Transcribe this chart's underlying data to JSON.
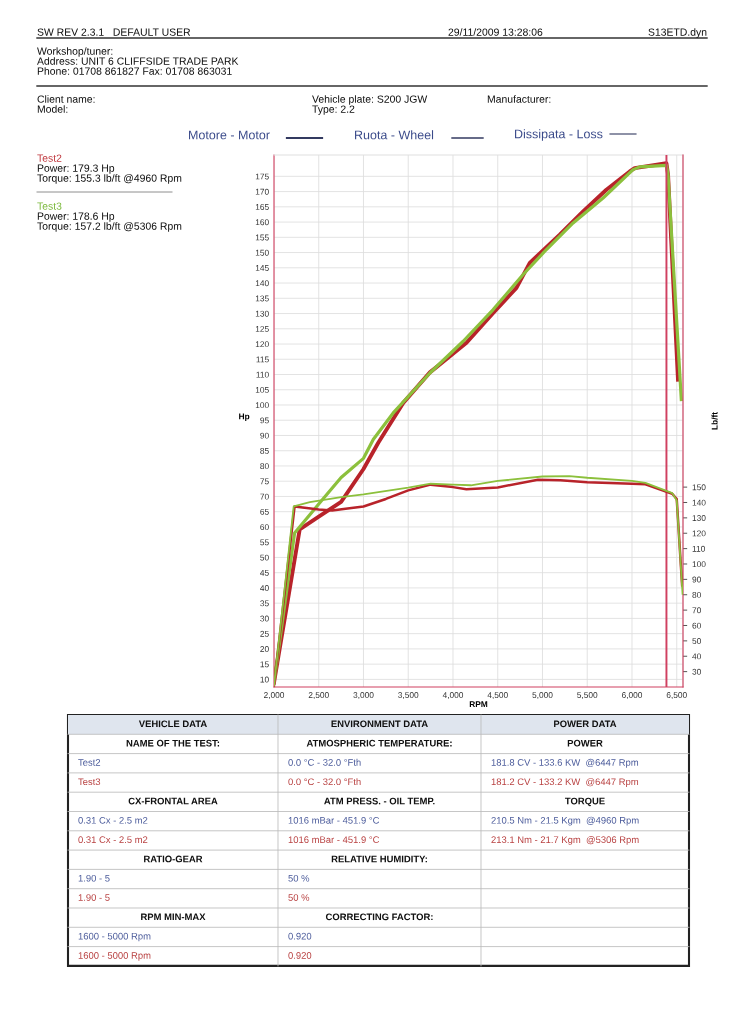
{
  "chart_data": {
    "type": "line",
    "xlabel": "RPM",
    "ylabel": "Hp",
    "y2label": "Lb/ft",
    "xlim": [
      2000,
      6570
    ],
    "ylim": [
      7.5,
      182
    ],
    "y2lim": [
      20,
      366
    ],
    "xticks": [
      {
        "value": 2000,
        "label": "2,000"
      },
      {
        "value": 2500,
        "label": "2,500"
      },
      {
        "value": 3000,
        "label": "3,000"
      },
      {
        "value": 3500,
        "label": "3,500"
      },
      {
        "value": 4000,
        "label": "4,000"
      },
      {
        "value": 4500,
        "label": "4,500"
      },
      {
        "value": 5000,
        "label": "5,000"
      },
      {
        "value": 5500,
        "label": "5,500"
      },
      {
        "value": 6000,
        "label": "6,000"
      },
      {
        "value": 6500,
        "label": "6,500"
      }
    ],
    "yticks": [
      10,
      15,
      20,
      25,
      30,
      35,
      40,
      45,
      50,
      55,
      60,
      65,
      70,
      75,
      80,
      85,
      90,
      95,
      100,
      105,
      110,
      115,
      120,
      125,
      130,
      135,
      140,
      145,
      150,
      155,
      160,
      165,
      170,
      175
    ],
    "y2ticks": [
      30,
      40,
      50,
      60,
      70,
      80,
      90,
      100,
      110,
      120,
      130,
      140,
      150
    ],
    "grid": true,
    "marker": "none",
    "line_style": "solid",
    "series": [
      {
        "color": "#b8232a",
        "x": [
          2000,
          2287,
          2500,
          2750,
          3000,
          3165,
          3444,
          3742,
          3928,
          4151,
          4449,
          4709,
          4858,
          5193,
          5454,
          5714,
          5975,
          6030,
          6385,
          6403,
          6514
        ],
        "values": [
          9,
          59.2,
          63.4,
          68.2,
          79.0,
          87.6,
          100.7,
          110.7,
          115.1,
          120.4,
          130.2,
          138.4,
          146.6,
          155.9,
          163.5,
          170.6,
          176.6,
          177.7,
          179.3,
          175.5,
          108.3
        ]
      },
      {
        "color": "#8cc03c",
        "x": [
          2000,
          2230,
          2500,
          2750,
          3000,
          3109,
          3332,
          3742,
          4114,
          4449,
          4784,
          5044,
          5342,
          5677,
          6012,
          6087,
          6385,
          6403,
          6551
        ],
        "values": [
          9,
          58,
          67.5,
          76.2,
          82.5,
          88.7,
          97.4,
          110.5,
          120.9,
          131.3,
          142.8,
          151.0,
          159.7,
          167.9,
          177.2,
          178.1,
          178.6,
          175.5,
          101.8
        ]
      },
      {
        "color": "#b8232a",
        "axis": "y2",
        "x": [
          2000,
          2230,
          2500,
          2650,
          2800,
          3000,
          3250,
          3500,
          3750,
          4000,
          4150,
          4500,
          4950,
          5200,
          5500,
          6000,
          6150,
          6450,
          6500,
          6560
        ],
        "values": [
          21,
          137.4,
          135.4,
          134.8,
          136.0,
          137.4,
          142.3,
          147.9,
          151.6,
          150.0,
          148.6,
          149.8,
          154.8,
          154.4,
          153.2,
          152.2,
          151.8,
          145.7,
          142.3,
          86.1
        ]
      },
      {
        "color": "#8cc03c",
        "axis": "y2",
        "x": [
          2000,
          2220,
          2400,
          2750,
          3000,
          3500,
          3750,
          4000,
          4200,
          4500,
          5000,
          5300,
          5500,
          6000,
          6150,
          6450,
          6500,
          6565
        ],
        "values": [
          21,
          137.4,
          140.2,
          143.5,
          145.3,
          149.6,
          152.2,
          151.6,
          151.2,
          154.0,
          156.9,
          157.2,
          156.1,
          154.0,
          152.8,
          146.1,
          141.3,
          80.6
        ]
      }
    ],
    "ref_lines": [
      {
        "axis": "x",
        "value": 6385,
        "color": "#d04060"
      }
    ],
    "annotations": [
      "SW REV 2.3.1   DEFAULT USER",
      "29/11/2009 13:28:06",
      "S13ETD.dyn",
      "Workshop/tuner:",
      "Address: UNIT 6 CLIFFSIDE TRADE PARK",
      "Phone: 01708 861827 Fax: 01708 863031",
      "Client name:",
      "Model:",
      "Vehicle plate: S200 JGW",
      "Type: 2.2",
      "Manufacturer:",
      "Motore - Motor",
      "Ruota - Wheel",
      "Dissipata - Loss",
      "Test2",
      "Power: 179.3 Hp",
      "Torque: 155.3 lb/ft @4960 Rpm",
      "Test3",
      "Power: 178.6 Hp",
      "Torque: 157.2 lb/ft @5306 Rpm",
      "VEHICLE DATA",
      "ENVIRONMENT DATA",
      "POWER DATA",
      "NAME OF THE TEST:",
      "ATMOSPHERIC TEMPERATURE:",
      "POWER",
      "Test2",
      "0.0 °C - 32.0 °Fth",
      "181.8 CV - 133.6 KW  @6447 Rpm",
      "Test3",
      "0.0 °C - 32.0 °Fth",
      "181.2 CV - 133.2 KW  @6447 Rpm",
      "CX-FRONTAL AREA",
      "ATM PRESS. - OIL TEMP.",
      "TORQUE",
      "0.31 Cx - 2.5 m2",
      "1016 mBar - 451.9 °C",
      "210.5 Nm - 21.5 Kgm  @4960 Rpm",
      "0.31 Cx - 2.5 m2",
      "1016 mBar - 451.9 °C",
      "213.1 Nm - 21.7 Kgm  @5306 Rpm",
      "RATIO-GEAR",
      "RELATIVE HUMIDITY:",
      "1.90 - 5",
      "50 %",
      "1.90 - 5",
      "50 %",
      "RPM MIN-MAX",
      "CORRECTING FACTOR:",
      "1600 - 5000 Rpm",
      "0.920",
      "1600 - 5000 Rpm",
      "0.920"
    ]
  }
}
